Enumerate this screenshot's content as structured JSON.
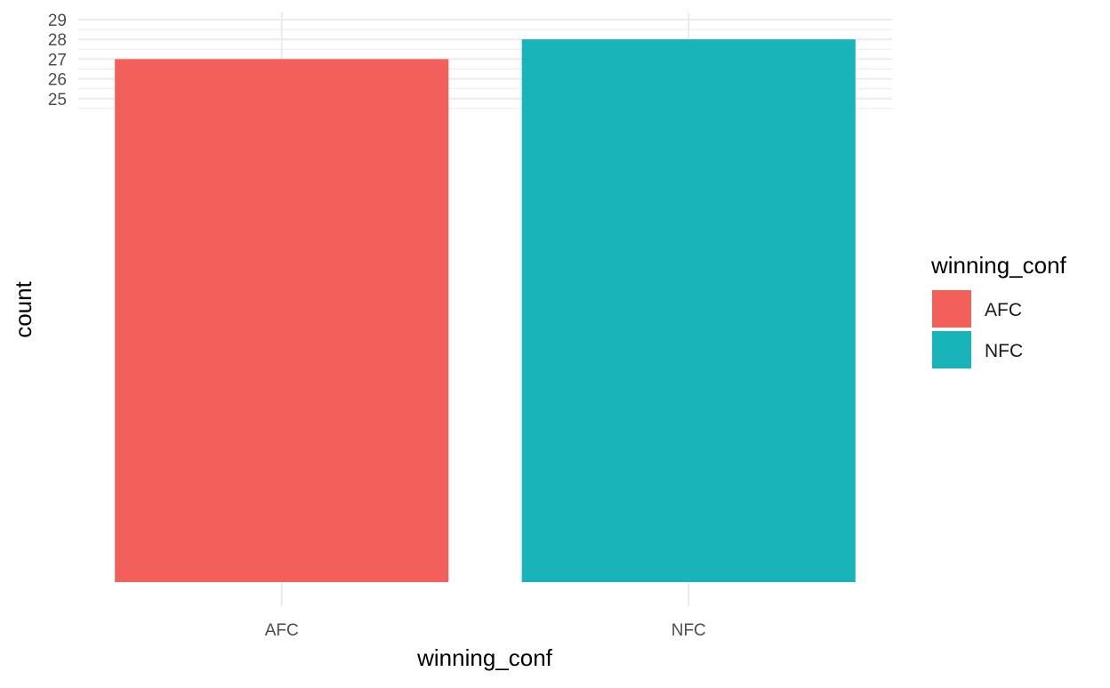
{
  "chart_data": {
    "type": "bar",
    "xlabel": "winning_conf",
    "ylabel": "count",
    "categories": [
      "AFC",
      "NFC"
    ],
    "values": [
      27,
      28
    ],
    "colors": [
      "#F35F5B",
      "#19B4B9"
    ],
    "ylim": [
      25,
      29
    ],
    "yticks": [
      25,
      26,
      27,
      28,
      29
    ],
    "grid": true,
    "legend": {
      "title": "winning_conf",
      "position": "right",
      "items": [
        {
          "label": "AFC",
          "color": "#F35F5B"
        },
        {
          "label": "NFC",
          "color": "#19B4B9"
        }
      ]
    }
  }
}
